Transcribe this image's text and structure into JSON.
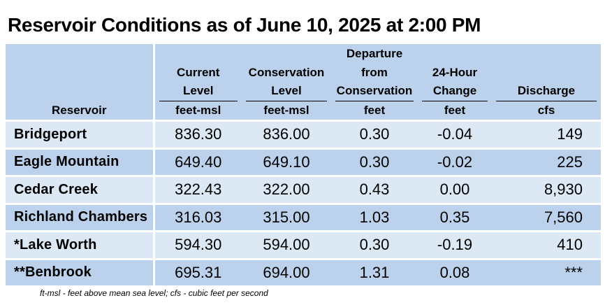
{
  "title": "Reservoir Conditions as of June 10, 2025 at 2:00 PM",
  "columns": [
    {
      "label_lines": [
        "Reservoir"
      ],
      "unit": ""
    },
    {
      "label_lines": [
        "Current",
        "Level"
      ],
      "unit": "feet-msl"
    },
    {
      "label_lines": [
        "Conservation",
        "Level"
      ],
      "unit": "feet-msl"
    },
    {
      "label_lines": [
        "Departure",
        "from",
        "Conservation"
      ],
      "unit": "feet"
    },
    {
      "label_lines": [
        "24-Hour",
        "Change"
      ],
      "unit": "feet"
    },
    {
      "label_lines": [
        "Discharge"
      ],
      "unit": "cfs"
    }
  ],
  "rows": [
    {
      "reservoir": "Bridgeport",
      "current": "836.30",
      "conservation": "836.00",
      "departure": "0.30",
      "change": "-0.04",
      "discharge": "149"
    },
    {
      "reservoir": "Eagle Mountain",
      "current": "649.40",
      "conservation": "649.10",
      "departure": "0.30",
      "change": "-0.02",
      "discharge": "225"
    },
    {
      "reservoir": "Cedar Creek",
      "current": "322.43",
      "conservation": "322.00",
      "departure": "0.43",
      "change": "0.00",
      "discharge": "8,930"
    },
    {
      "reservoir": "Richland Chambers",
      "current": "316.03",
      "conservation": "315.00",
      "departure": "1.03",
      "change": "0.35",
      "discharge": "7,560"
    },
    {
      "reservoir": "*Lake Worth",
      "current": "594.30",
      "conservation": "594.00",
      "departure": "0.30",
      "change": "-0.19",
      "discharge": "410"
    },
    {
      "reservoir": "**Benbrook",
      "current": "695.31",
      "conservation": "694.00",
      "departure": "1.31",
      "change": "0.08",
      "discharge": "***"
    }
  ],
  "footnote": "ft-msl - feet above mean sea level; cfs - cubic feet per second",
  "colors": {
    "header_bg": "#bcd2ec",
    "row_light": "#dde8f5",
    "row_dark": "#bcd2ec"
  }
}
